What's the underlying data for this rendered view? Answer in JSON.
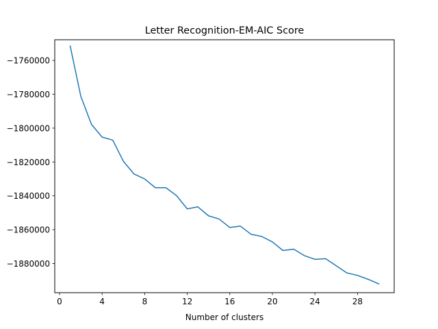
{
  "chart_data": {
    "type": "line",
    "title": "Letter Recognition-EM-AIC Score",
    "xlabel": "Number of clusters",
    "ylabel": "",
    "xlim": [
      -0.45,
      31.45
    ],
    "ylim": [
      -1897200,
      -1747800
    ],
    "x_ticks": [
      0,
      4,
      8,
      12,
      16,
      20,
      24,
      28
    ],
    "x_tick_labels": [
      "0",
      "4",
      "8",
      "12",
      "16",
      "20",
      "24",
      "28"
    ],
    "y_ticks": [
      -1760000,
      -1780000,
      -1800000,
      -1820000,
      -1840000,
      -1860000,
      -1880000
    ],
    "y_tick_labels": [
      "−1760000",
      "−1780000",
      "−1800000",
      "−1820000",
      "−1840000",
      "−1860000",
      "−1880000"
    ],
    "grid": false,
    "legend": "none",
    "series": [
      {
        "color": "#1f77b4",
        "x": [
          1,
          2,
          3,
          4,
          5,
          6,
          7,
          8,
          9,
          10,
          11,
          12,
          13,
          14,
          15,
          16,
          17,
          18,
          19,
          20,
          21,
          22,
          23,
          24,
          25,
          26,
          27,
          28,
          29,
          30
        ],
        "values": [
          -1751500,
          -1781200,
          -1797800,
          -1805300,
          -1807100,
          -1819600,
          -1827100,
          -1830000,
          -1835200,
          -1835200,
          -1839900,
          -1847700,
          -1846500,
          -1851800,
          -1853700,
          -1858700,
          -1857900,
          -1862700,
          -1864000,
          -1867200,
          -1872300,
          -1871500,
          -1875300,
          -1877500,
          -1877100,
          -1881300,
          -1885500,
          -1887000,
          -1889300,
          -1892000
        ]
      }
    ]
  }
}
